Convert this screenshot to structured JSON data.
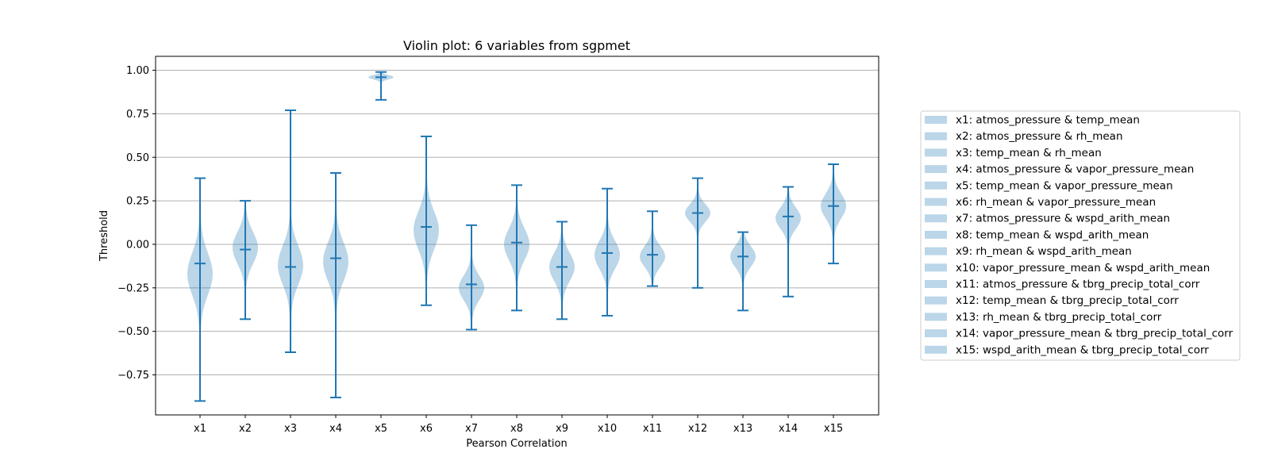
{
  "chart_data": {
    "type": "violin",
    "title": "Violin plot: 6 variables from sgpmet",
    "xlabel": "Pearson Correlation",
    "ylabel": "Threshold",
    "ylim": [
      -0.98,
      1.08
    ],
    "yticks": [
      1.0,
      0.75,
      0.5,
      0.25,
      0.0,
      -0.25,
      -0.5,
      -0.75
    ],
    "ytick_labels": [
      "1.00",
      "0.75",
      "0.50",
      "0.25",
      "0.00",
      "−0.25",
      "−0.50",
      "−0.75"
    ],
    "grid": "horizontal",
    "legend_position": "right",
    "colors": {
      "violin": "#1f77b4",
      "violin_opacity": 0.3,
      "line": "#1f77b4",
      "grid": "#b0b0b0"
    },
    "categories": [
      "x1",
      "x2",
      "x3",
      "x4",
      "x5",
      "x6",
      "x7",
      "x8",
      "x9",
      "x10",
      "x11",
      "x12",
      "x13",
      "x14",
      "x15"
    ],
    "series": [
      {
        "name": "x1: atmos_pressure & temp_mean",
        "min": -0.9,
        "max": 0.38,
        "median": -0.11,
        "peak": -0.17,
        "spread": 0.12,
        "width": 0.5
      },
      {
        "name": "x2: atmos_pressure & rh_mean",
        "min": -0.43,
        "max": 0.25,
        "median": -0.03,
        "peak": -0.02,
        "spread": 0.09,
        "width": 0.5
      },
      {
        "name": "x3: temp_mean & rh_mean",
        "min": -0.62,
        "max": 0.77,
        "median": -0.13,
        "peak": -0.12,
        "spread": 0.11,
        "width": 0.5
      },
      {
        "name": "x4: atmos_pressure & vapor_pressure_mean",
        "min": -0.88,
        "max": 0.41,
        "median": -0.08,
        "peak": -0.1,
        "spread": 0.11,
        "width": 0.5
      },
      {
        "name": "x5: temp_mean & vapor_pressure_mean",
        "min": 0.83,
        "max": 0.99,
        "median": 0.96,
        "peak": 0.96,
        "spread": 0.012,
        "width": 0.5
      },
      {
        "name": "x6: rh_mean & vapor_pressure_mean",
        "min": -0.35,
        "max": 0.62,
        "median": 0.1,
        "peak": 0.08,
        "spread": 0.11,
        "width": 0.5
      },
      {
        "name": "x7: atmos_pressure & wspd_arith_mean",
        "min": -0.49,
        "max": 0.11,
        "median": -0.23,
        "peak": -0.25,
        "spread": 0.07,
        "width": 0.5
      },
      {
        "name": "x8: temp_mean & wspd_arith_mean",
        "min": -0.38,
        "max": 0.34,
        "median": 0.01,
        "peak": 0.0,
        "spread": 0.09,
        "width": 0.5
      },
      {
        "name": "x9: rh_mean & wspd_arith_mean",
        "min": -0.43,
        "max": 0.13,
        "median": -0.13,
        "peak": -0.13,
        "spread": 0.08,
        "width": 0.5
      },
      {
        "name": "x10: vapor_pressure_mean & wspd_arith_mean",
        "min": -0.41,
        "max": 0.32,
        "median": -0.05,
        "peak": -0.06,
        "spread": 0.08,
        "width": 0.5
      },
      {
        "name": "x11: atmos_pressure & tbrg_precip_total_corr",
        "min": -0.24,
        "max": 0.19,
        "median": -0.06,
        "peak": -0.07,
        "spread": 0.06,
        "width": 0.5
      },
      {
        "name": "x12: temp_mean & tbrg_precip_total_corr",
        "min": -0.25,
        "max": 0.38,
        "median": 0.18,
        "peak": 0.18,
        "spread": 0.05,
        "width": 0.5
      },
      {
        "name": "x13: rh_mean & tbrg_precip_total_corr",
        "min": -0.38,
        "max": 0.07,
        "median": -0.07,
        "peak": -0.07,
        "spread": 0.06,
        "width": 0.5
      },
      {
        "name": "x14: vapor_pressure_mean & tbrg_precip_total_corr",
        "min": -0.3,
        "max": 0.33,
        "median": 0.16,
        "peak": 0.15,
        "spread": 0.06,
        "width": 0.5
      },
      {
        "name": "x15: wspd_arith_mean & tbrg_precip_total_corr",
        "min": -0.11,
        "max": 0.46,
        "median": 0.22,
        "peak": 0.22,
        "spread": 0.07,
        "width": 0.5
      }
    ]
  }
}
